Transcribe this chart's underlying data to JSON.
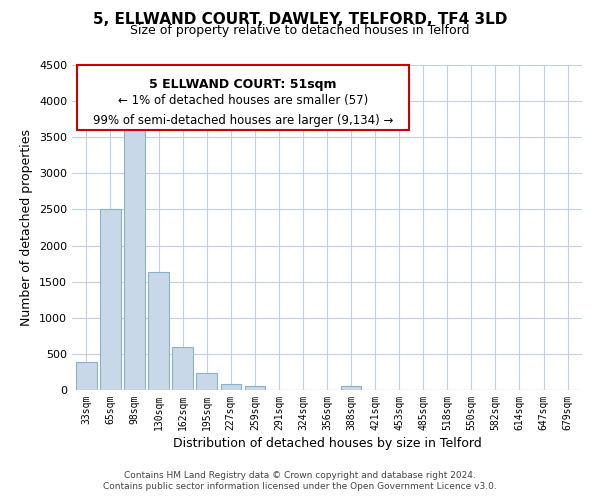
{
  "title": "5, ELLWAND COURT, DAWLEY, TELFORD, TF4 3LD",
  "subtitle": "Size of property relative to detached houses in Telford",
  "xlabel": "Distribution of detached houses by size in Telford",
  "ylabel": "Number of detached properties",
  "bar_labels": [
    "33sqm",
    "65sqm",
    "98sqm",
    "130sqm",
    "162sqm",
    "195sqm",
    "227sqm",
    "259sqm",
    "291sqm",
    "324sqm",
    "356sqm",
    "388sqm",
    "421sqm",
    "453sqm",
    "485sqm",
    "518sqm",
    "550sqm",
    "582sqm",
    "614sqm",
    "647sqm",
    "679sqm"
  ],
  "bar_heights": [
    390,
    2500,
    3720,
    1640,
    600,
    240,
    80,
    50,
    0,
    0,
    0,
    50,
    0,
    0,
    0,
    0,
    0,
    0,
    0,
    0,
    0
  ],
  "bar_color": "#c8d8e8",
  "bar_edge_color": "#8ab0cc",
  "ylim": [
    0,
    4500
  ],
  "yticks": [
    0,
    500,
    1000,
    1500,
    2000,
    2500,
    3000,
    3500,
    4000,
    4500
  ],
  "annotation_title": "5 ELLWAND COURT: 51sqm",
  "annotation_line1": "← 1% of detached houses are smaller (57)",
  "annotation_line2": "99% of semi-detached houses are larger (9,134) →",
  "annotation_box_color": "#ffffff",
  "annotation_box_edge": "#cc0000",
  "footer_line1": "Contains HM Land Registry data © Crown copyright and database right 2024.",
  "footer_line2": "Contains public sector information licensed under the Open Government Licence v3.0.",
  "background_color": "#ffffff",
  "grid_color": "#c0d0e0"
}
